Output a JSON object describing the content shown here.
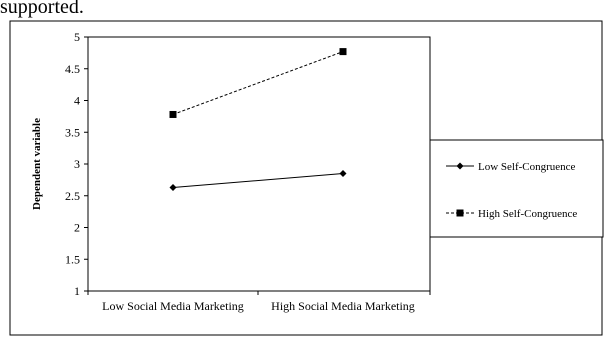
{
  "header_fragment": "supported.",
  "chart_data": {
    "type": "line",
    "categories": [
      "Low Social Media Marketing",
      "High Social Media Marketing"
    ],
    "ylabel": "Dependent variable",
    "xlabel": "",
    "ylim": [
      1,
      5
    ],
    "yticks": [
      "1",
      "1.5",
      "2",
      "2.5",
      "3",
      "3.5",
      "4",
      "4.5",
      "5"
    ],
    "legend_position": "right",
    "grid": false,
    "series": [
      {
        "name": "Low Self-Congruence",
        "values": [
          2.63,
          2.85
        ],
        "color": "#000000",
        "line": "solid",
        "marker": "diamond"
      },
      {
        "name": "High Self-Congruence",
        "values": [
          3.78,
          4.77
        ],
        "color": "#000000",
        "line": "dashed",
        "marker": "square"
      }
    ]
  }
}
